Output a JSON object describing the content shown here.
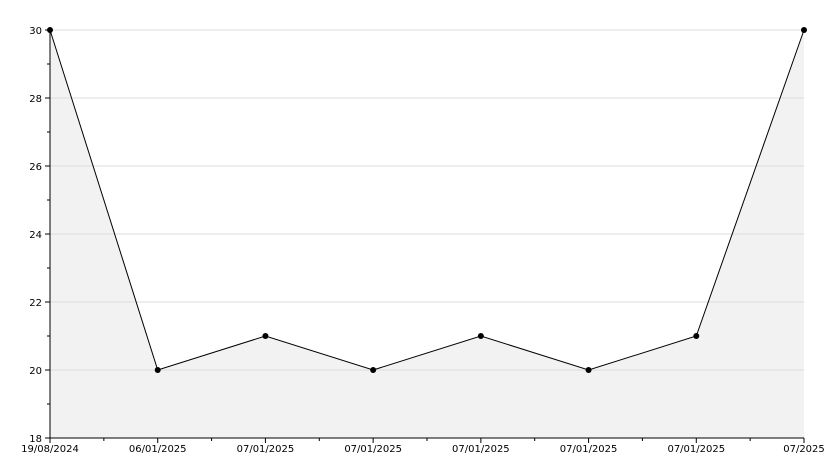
{
  "chart_data": {
    "type": "area",
    "title": "",
    "xlabel": "",
    "ylabel": "",
    "x": [
      "19/08/2024",
      "06/01/2025",
      "07/01/2025",
      "07/01/2025",
      "07/01/2025",
      "07/01/2025",
      "07/01/2025",
      "07/2025"
    ],
    "values": [
      30,
      20,
      21,
      20,
      21,
      20,
      21,
      30
    ],
    "ylim": [
      18,
      30
    ],
    "yticks": [
      18,
      20,
      22,
      24,
      26,
      28,
      30
    ],
    "grid": true,
    "legend": "none",
    "colors": {
      "line": "#000000",
      "fill": "#f2f2f2",
      "grid": "#dcdcdc",
      "marker": "#000000"
    }
  }
}
